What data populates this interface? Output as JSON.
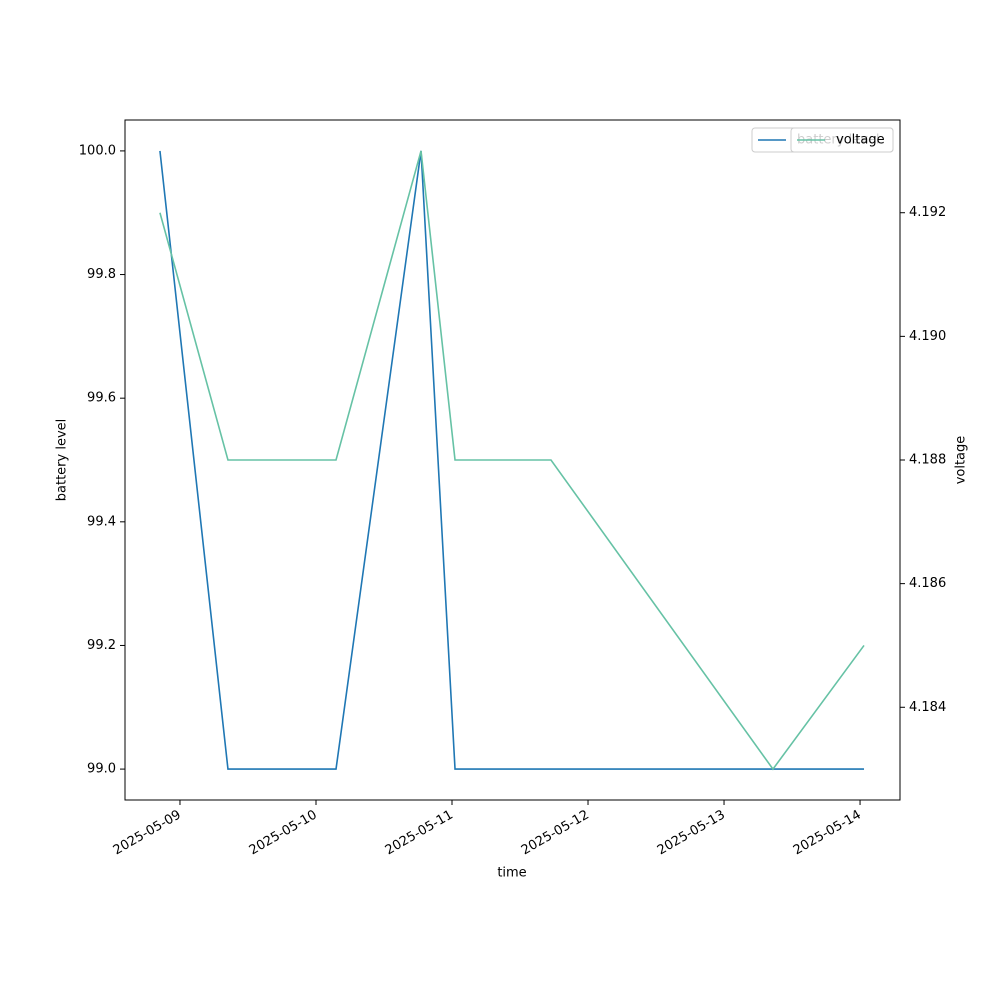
{
  "chart_data": {
    "type": "line",
    "x": [
      "2025-05-08T20:28",
      "2025-05-09T08:28",
      "2025-05-10T03:32",
      "2025-05-10T18:32",
      "2025-05-11T00:32",
      "2025-05-11T17:28",
      "2025-05-13T08:38",
      "2025-05-14T00:42"
    ],
    "series": [
      {
        "name": "battery level",
        "color": "#1f77b4",
        "values": [
          100,
          99,
          99,
          100,
          99,
          99,
          99,
          99
        ]
      },
      {
        "name": "voltage",
        "color": "#66c2a5",
        "axis": "y2",
        "values": [
          4.192,
          4.188,
          4.188,
          4.193,
          4.188,
          4.188,
          4.183,
          4.185
        ]
      }
    ],
    "xlabel": "time",
    "ylabel": "battery level",
    "y2label": "voltage",
    "xlim": [
      "2025-05-08T14:18",
      "2025-05-14T07:03"
    ],
    "xticks": [
      "2025-05-09",
      "2025-05-10",
      "2025-05-11",
      "2025-05-12",
      "2025-05-13",
      "2025-05-14"
    ],
    "ylim": [
      98.95,
      100.05
    ],
    "yticks": [
      {
        "value": 99,
        "label": "99.0"
      },
      {
        "value": 99.2,
        "label": "99.2"
      },
      {
        "value": 99.4,
        "label": "99.4"
      },
      {
        "value": 99.6,
        "label": "99.6"
      },
      {
        "value": 99.8,
        "label": "99.8"
      },
      {
        "value": 100,
        "label": "100.0"
      }
    ],
    "y2lim": [
      4.1825,
      4.1935
    ],
    "y2ticks": [
      4.184,
      4.186,
      4.188,
      {
        "value": 4.19,
        "label": "4.190"
      },
      4.192
    ],
    "legend": "upper right"
  }
}
